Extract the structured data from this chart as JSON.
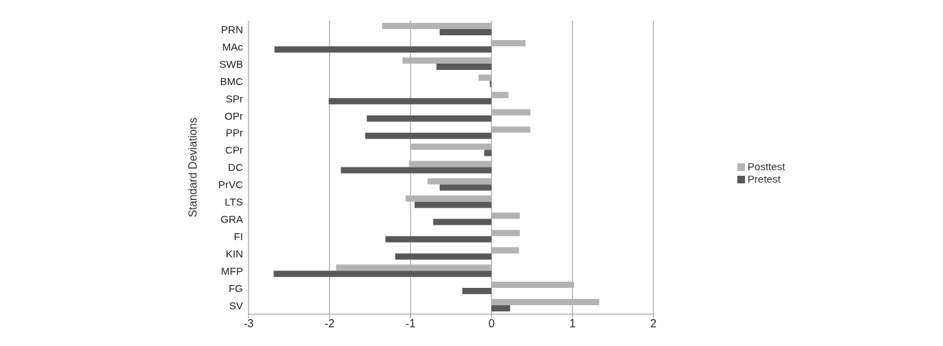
{
  "chart_data": {
    "type": "bar",
    "orientation": "horizontal",
    "ylabel": "Standard Deviations",
    "categories": [
      "PRN",
      "MAc",
      "SWB",
      "BMC",
      "SPr",
      "OPr",
      "PPr",
      "CPr",
      "DC",
      "PrVC",
      "LTS",
      "GRA",
      "FI",
      "KIN",
      "MFP",
      "FG",
      "SV"
    ],
    "series": [
      {
        "name": "Posttest",
        "color": "#b3b3b3",
        "values": [
          -1.35,
          0.42,
          -1.1,
          -0.16,
          0.21,
          0.48,
          0.48,
          -1.0,
          -1.02,
          -0.79,
          -1.06,
          0.35,
          0.35,
          0.34,
          -1.92,
          1.02,
          1.33
        ]
      },
      {
        "name": "Pretest",
        "color": "#595959",
        "values": [
          -0.64,
          -2.68,
          -0.68,
          -0.02,
          -2.01,
          -1.54,
          -1.56,
          -0.09,
          -1.86,
          -0.64,
          -0.95,
          -0.72,
          -1.31,
          -1.19,
          -2.69,
          -0.36,
          0.23
        ]
      }
    ],
    "xlim": [
      -3,
      2
    ],
    "xticks": [
      -3,
      -2,
      -1,
      0,
      1,
      2
    ],
    "grid": "x",
    "legend": "right"
  }
}
